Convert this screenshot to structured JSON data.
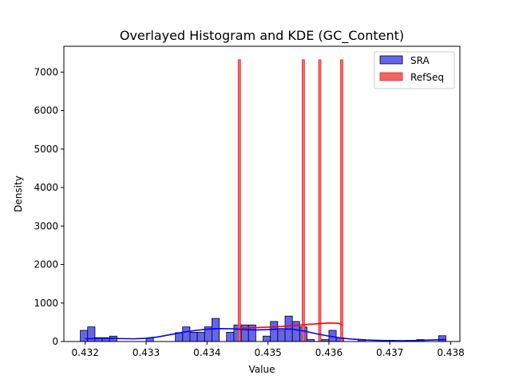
{
  "chart_data": {
    "type": "histogram",
    "title": "Overlayed Histogram and KDE (GC_Content)",
    "xlabel": "Value",
    "ylabel": "Density",
    "xlim": [
      0.43165,
      0.43815
    ],
    "ylim": [
      0,
      7670
    ],
    "xticks": [
      0.432,
      0.433,
      0.434,
      0.435,
      0.436,
      0.437,
      0.438
    ],
    "yticks": [
      0,
      1000,
      2000,
      3000,
      4000,
      5000,
      6000,
      7000
    ],
    "grid": false,
    "legend": {
      "position": "top-right",
      "entries": [
        {
          "label": "SRA",
          "color": "#6464f0"
        },
        {
          "label": "RefSeq",
          "color": "#f06464"
        }
      ]
    },
    "series": [
      {
        "name": "SRA",
        "kind": "histogram",
        "fill": "#6464f0",
        "edge": "#000000",
        "kde_color": "#0000ff",
        "bins": [
          [
            0.43192,
            0.43204,
            290
          ],
          [
            0.43204,
            0.43216,
            380
          ],
          [
            0.43216,
            0.43228,
            100
          ],
          [
            0.43228,
            0.4324,
            100
          ],
          [
            0.4324,
            0.43252,
            140
          ],
          [
            0.433,
            0.43312,
            90
          ],
          [
            0.43348,
            0.4336,
            230
          ],
          [
            0.4336,
            0.43372,
            380
          ],
          [
            0.43372,
            0.43384,
            240
          ],
          [
            0.43384,
            0.43396,
            240
          ],
          [
            0.43396,
            0.43408,
            380
          ],
          [
            0.43408,
            0.4342,
            600
          ],
          [
            0.43432,
            0.43444,
            240
          ],
          [
            0.43444,
            0.43456,
            430
          ],
          [
            0.43456,
            0.43468,
            430
          ],
          [
            0.43468,
            0.4348,
            430
          ],
          [
            0.43492,
            0.43504,
            140
          ],
          [
            0.43504,
            0.43516,
            520
          ],
          [
            0.43516,
            0.43528,
            290
          ],
          [
            0.43528,
            0.4354,
            660
          ],
          [
            0.4354,
            0.43552,
            520
          ],
          [
            0.43552,
            0.43564,
            380
          ],
          [
            0.43564,
            0.43576,
            50
          ],
          [
            0.43588,
            0.436,
            50
          ],
          [
            0.436,
            0.43612,
            290
          ],
          [
            0.43612,
            0.43624,
            100
          ],
          [
            0.43648,
            0.4366,
            50
          ],
          [
            0.43696,
            0.43708,
            30
          ],
          [
            0.43744,
            0.43756,
            50
          ],
          [
            0.4378,
            0.43792,
            150
          ]
        ],
        "kde": [
          [
            0.432,
            70
          ],
          [
            0.4322,
            80
          ],
          [
            0.4324,
            85
          ],
          [
            0.4326,
            75
          ],
          [
            0.4328,
            70
          ],
          [
            0.433,
            85
          ],
          [
            0.4332,
            120
          ],
          [
            0.4334,
            180
          ],
          [
            0.4336,
            240
          ],
          [
            0.4338,
            285
          ],
          [
            0.434,
            320
          ],
          [
            0.4342,
            335
          ],
          [
            0.4344,
            330
          ],
          [
            0.4346,
            310
          ],
          [
            0.4348,
            300
          ],
          [
            0.435,
            310
          ],
          [
            0.4352,
            330
          ],
          [
            0.4354,
            320
          ],
          [
            0.4356,
            270
          ],
          [
            0.4358,
            200
          ],
          [
            0.436,
            140
          ],
          [
            0.4362,
            90
          ],
          [
            0.4364,
            60
          ],
          [
            0.4366,
            40
          ],
          [
            0.4368,
            30
          ],
          [
            0.437,
            22
          ],
          [
            0.4372,
            20
          ],
          [
            0.4374,
            25
          ],
          [
            0.4376,
            35
          ],
          [
            0.4378,
            45
          ],
          [
            0.43792,
            50
          ]
        ]
      },
      {
        "name": "RefSeq",
        "kind": "histogram",
        "fill": "#f06464",
        "edge": "#e53030",
        "kde_color": "#ff0000",
        "bins": [
          [
            0.43451,
            0.43455,
            7320
          ],
          [
            0.43556,
            0.4356,
            7320
          ],
          [
            0.43583,
            0.43587,
            7320
          ],
          [
            0.43619,
            0.43623,
            7320
          ]
        ],
        "kde": [
          [
            0.43453,
            340
          ],
          [
            0.4348,
            360
          ],
          [
            0.4351,
            380
          ],
          [
            0.4354,
            410
          ],
          [
            0.4357,
            450
          ],
          [
            0.436,
            480
          ],
          [
            0.43615,
            475
          ],
          [
            0.4362,
            450
          ],
          [
            0.43621,
            420
          ]
        ]
      }
    ]
  }
}
